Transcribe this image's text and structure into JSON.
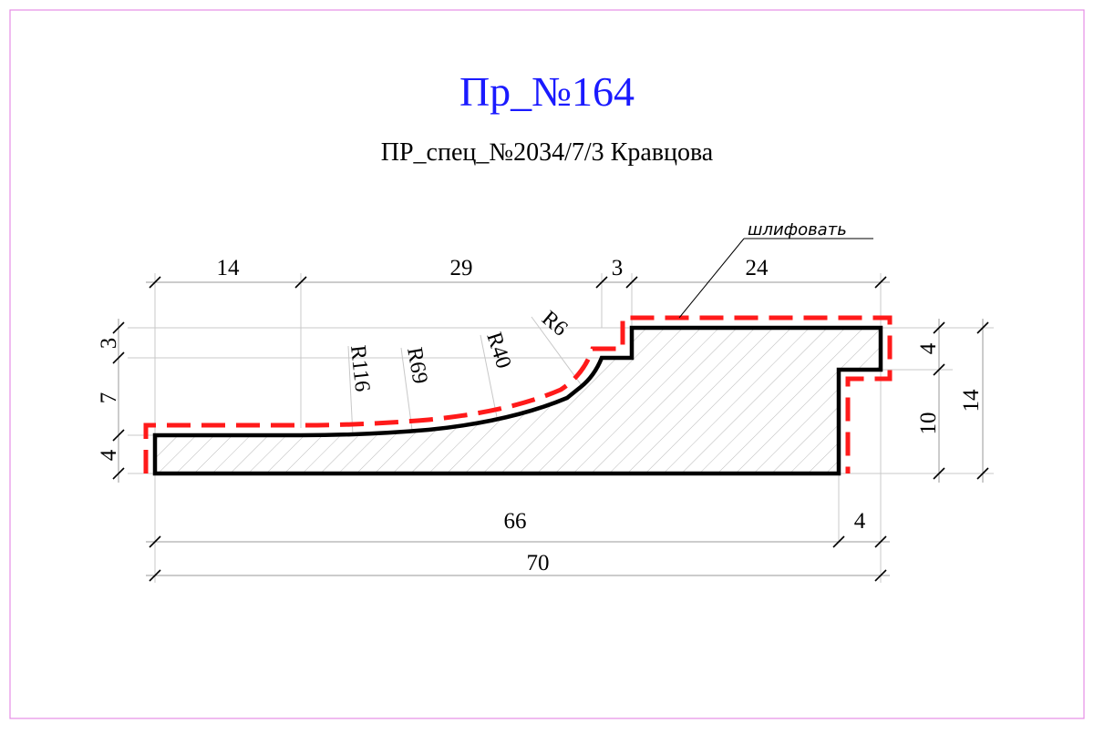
{
  "title": "Пр_№164",
  "subtitle": "ПР_спец_№2034/7/3 Кравцова",
  "note": "шлифовать",
  "colors": {
    "title": "#1a1aff",
    "dashed_outline": "#ff1a1a",
    "frame": "#e58ee5",
    "profile": "#000000",
    "hatch": "#b9b9b9"
  },
  "dims": {
    "top": [
      "14",
      "29",
      "3",
      "24"
    ],
    "left": [
      "3",
      "7",
      "4"
    ],
    "right_inner": [
      "4",
      "10"
    ],
    "right_outer": "14",
    "bottom_inner": [
      "66",
      "4"
    ],
    "bottom_total": "70"
  },
  "radii": [
    "R116",
    "R69",
    "R40",
    "R6"
  ]
}
